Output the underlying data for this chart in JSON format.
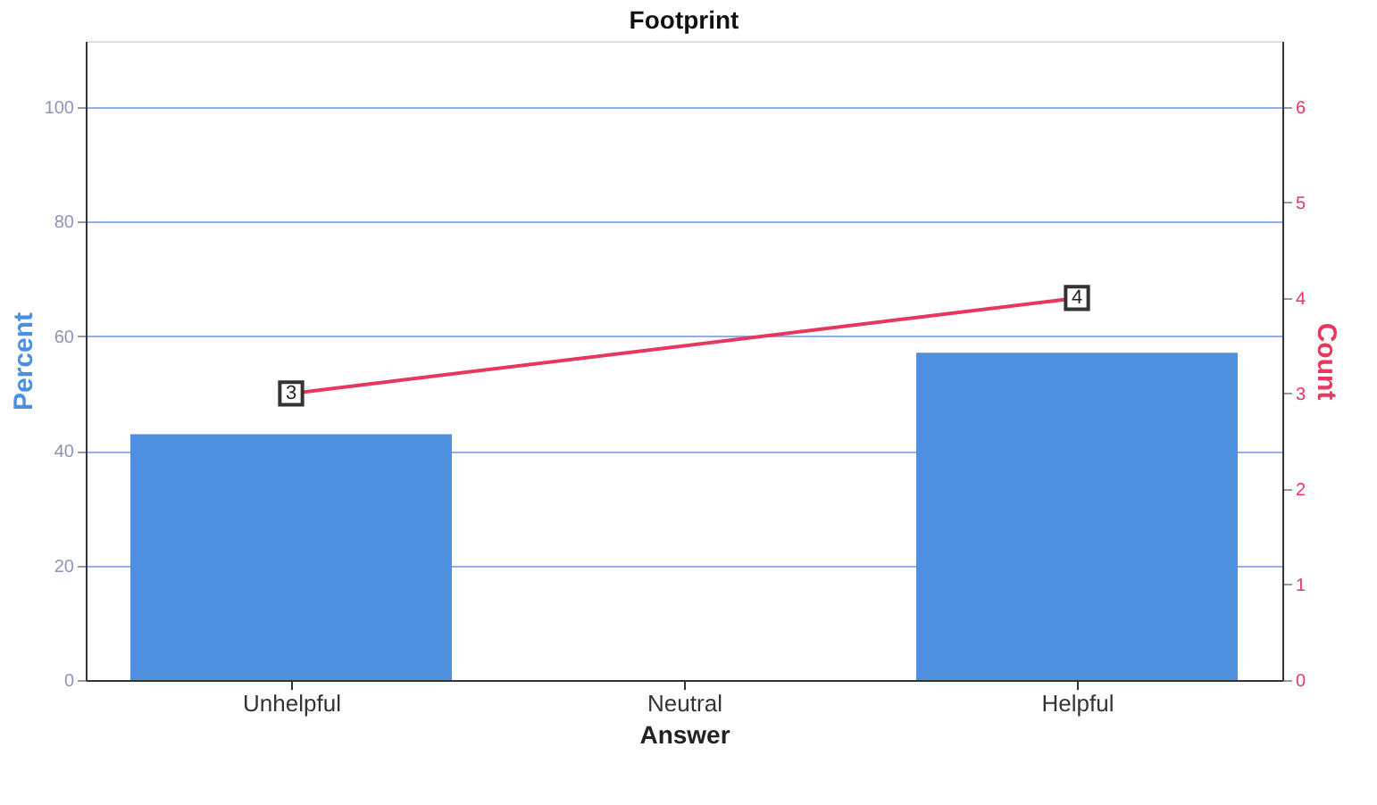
{
  "chart_data": {
    "type": "bar",
    "title": "Footprint",
    "xlabel": "Answer",
    "ylabel": "Percent",
    "y2label": "Count",
    "categories": [
      "Unhelpful",
      "Neutral",
      "Helpful"
    ],
    "series": [
      {
        "color": "#4f8fe0",
        "values": [
          42.9,
          null,
          57.1
        ]
      },
      {
        "type": "line",
        "axis": "y2",
        "color": "#e8375f",
        "marker": "square",
        "values": [
          3,
          null,
          4
        ],
        "value_labels": [
          "3",
          null,
          "4"
        ]
      }
    ],
    "ylim": [
      0,
      111.5
    ],
    "yticks": [
      0,
      20,
      40,
      60,
      80,
      100
    ],
    "y2lim": [
      0,
      6.69
    ],
    "y2ticks": [
      0,
      1,
      2,
      3,
      4,
      5,
      6
    ],
    "grid": "y"
  }
}
